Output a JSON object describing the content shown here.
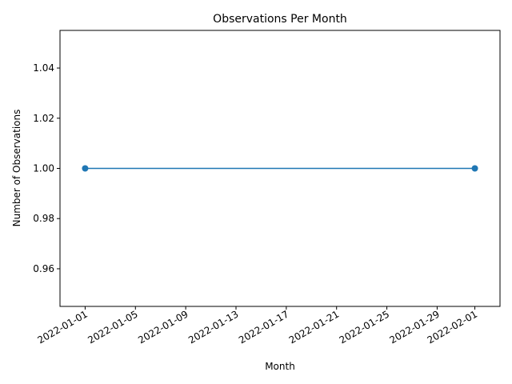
{
  "chart_data": {
    "type": "line",
    "title": "Observations Per Month",
    "xlabel": "Month",
    "ylabel": "Number of Observations",
    "x": [
      "2022-01-01",
      "2022-02-01"
    ],
    "series": [
      {
        "values": [
          1.0,
          1.0
        ],
        "color": "#1f77b4",
        "marker": "circle"
      }
    ],
    "xlim": [
      "2021-12-30",
      "2022-02-03"
    ],
    "ylim": [
      0.945,
      1.055
    ],
    "xticks": [
      "2022-01-01",
      "2022-01-05",
      "2022-01-09",
      "2022-01-13",
      "2022-01-17",
      "2022-01-21",
      "2022-01-25",
      "2022-01-29",
      "2022-02-01"
    ],
    "yticks": [
      0.96,
      0.98,
      1.0,
      1.02,
      1.04
    ],
    "ytick_labels": [
      "0.96",
      "0.98",
      "1.00",
      "1.02",
      "1.04"
    ],
    "grid": false,
    "legend": "none"
  }
}
